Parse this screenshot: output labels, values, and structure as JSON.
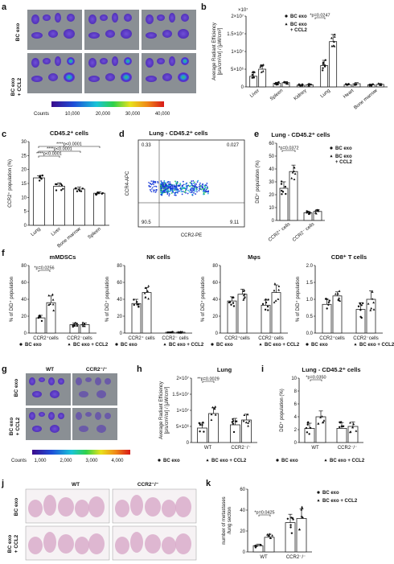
{
  "panel_labels": {
    "a": "a",
    "b": "b",
    "c": "c",
    "d": "d",
    "e": "e",
    "f": "f",
    "g": "g",
    "h": "h",
    "i": "i",
    "j": "j",
    "k": "k"
  },
  "panel_a": {
    "row_labels": [
      "BC exo",
      "BC exo\n+ CCL2"
    ],
    "colorbar_title": "Counts",
    "colorbar_ticks": [
      "10,000",
      "20,000",
      "30,000",
      "40,000"
    ]
  },
  "panel_d": {
    "title": "Lung - CD45.2⁺ cells",
    "ylabel": "CCR4-APC",
    "xlabel": "CCR2-PE",
    "quadrants": [
      "0.33",
      "0.027",
      "90.5",
      "9.11"
    ]
  },
  "panel_g": {
    "col_labels": [
      "WT",
      "CCR2⁻/⁻"
    ],
    "row_labels": [
      "BC exo",
      "BC exo\n+ CCL2"
    ],
    "colorbar_title": "Counts",
    "colorbar_ticks": [
      "1,000",
      "2,000",
      "3,000",
      "4,000"
    ]
  },
  "panel_j": {
    "col_labels": [
      "WT",
      "CCR2⁻/⁻"
    ],
    "row_labels": [
      "BC exo",
      "BC exo\n+ CCL2"
    ]
  },
  "legend": {
    "s1": "BC exo",
    "s2": "BC exo + CCL2",
    "s2_line1": "BC exo",
    "s2_line2": "+ CCL2"
  },
  "colors": {
    "bar_edge": "#222222",
    "point": "#111111",
    "he_stain": "#d8a8c8"
  },
  "chart_data": [
    {
      "id": "b",
      "type": "bar",
      "ylabel": "Average Radiant Efficiency [p/s/cm²/sr] / [μW/cm²]",
      "exponent": "×10⁷",
      "yticks": [
        "0",
        "5×10⁶",
        "1×10⁷",
        "1.5×10⁷",
        "2×10⁷"
      ],
      "ylim": [
        0,
        20000000
      ],
      "categories": [
        "Liver",
        "Spleen",
        "Kidney",
        "Lung",
        "Heart",
        "Bone marrow"
      ],
      "series": [
        {
          "name": "BC exo",
          "values": [
            3000000,
            1000000,
            500000,
            6000000,
            600000,
            600000
          ],
          "errors": [
            1000000,
            300000,
            200000,
            1500000,
            200000,
            200000
          ]
        },
        {
          "name": "BC exo + CCL2",
          "values": [
            5000000,
            1200000,
            600000,
            12800000,
            900000,
            700000
          ],
          "errors": [
            1200000,
            300000,
            200000,
            2000000,
            300000,
            200000
          ]
        }
      ],
      "annotations": [
        "*p=0.0247"
      ]
    },
    {
      "id": "c",
      "type": "bar",
      "title": "CD45.2⁺ cells",
      "ylabel": "CCR2⁺ population (%)",
      "yticks": [
        "0",
        "5",
        "10",
        "15",
        "20",
        "25",
        "30"
      ],
      "ylim": [
        0,
        30
      ],
      "categories": [
        "Lung",
        "Liver",
        "Bone marrow",
        "Spleen"
      ],
      "values": [
        17,
        14,
        13,
        11.5
      ],
      "errors": [
        0.8,
        1.2,
        0.7,
        0.5
      ],
      "annotations": [
        "****p<0.0001",
        "****p<0.0001",
        "****p<0.0001"
      ]
    },
    {
      "id": "e",
      "type": "bar",
      "title": "Lung - CD45.2⁺ cells",
      "ylabel": "DiD⁺ population (%)",
      "yticks": [
        "0",
        "10",
        "20",
        "30",
        "40",
        "50",
        "60"
      ],
      "ylim": [
        0,
        60
      ],
      "categories": [
        "CCR2⁺ cells",
        "CCR2⁻ cells"
      ],
      "series": [
        {
          "name": "BC exo",
          "values": [
            25,
            6
          ],
          "errors": [
            5,
            1
          ]
        },
        {
          "name": "BC exo + CCL2",
          "values": [
            38,
            7
          ],
          "errors": [
            5,
            1.5
          ]
        }
      ],
      "annotations": [
        "*p=0.0372"
      ]
    },
    {
      "id": "f1",
      "type": "bar",
      "title": "mMDSCs",
      "ylabel": "% of DiD⁺ population",
      "yticks": [
        "0",
        "20",
        "40",
        "60",
        "80"
      ],
      "ylim": [
        0,
        80
      ],
      "categories": [
        "CCR2⁺cells",
        "CCR2⁻cells"
      ],
      "series": [
        {
          "name": "BC exo",
          "values": [
            18,
            10
          ],
          "errors": [
            3,
            2
          ]
        },
        {
          "name": "BC exo + CCL2",
          "values": [
            36,
            10
          ],
          "errors": [
            8,
            2
          ]
        }
      ],
      "annotations": [
        "*p=0.0256"
      ]
    },
    {
      "id": "f2",
      "type": "bar",
      "title": "NK cells",
      "ylabel": "% of DiD⁺ population",
      "yticks": [
        "0",
        "20",
        "40",
        "60",
        "80"
      ],
      "ylim": [
        0,
        80
      ],
      "categories": [
        "CCR2⁺ cells",
        "CCR2⁻ cells"
      ],
      "series": [
        {
          "name": "BC exo",
          "values": [
            35,
            1
          ],
          "errors": [
            5,
            0.5
          ]
        },
        {
          "name": "BC exo + CCL2",
          "values": [
            48,
            1
          ],
          "errors": [
            6,
            0.5
          ]
        }
      ]
    },
    {
      "id": "f3",
      "type": "bar",
      "title": "Mφs",
      "ylabel": "% of DiD⁺ population",
      "yticks": [
        "0",
        "20",
        "40",
        "60",
        "80"
      ],
      "ylim": [
        0,
        80
      ],
      "categories": [
        "CCR2⁺cells",
        "CCR2⁻cells"
      ],
      "series": [
        {
          "name": "BC exo",
          "values": [
            38,
            33
          ],
          "errors": [
            5,
            6
          ]
        },
        {
          "name": "BC exo + CCL2",
          "values": [
            46,
            48
          ],
          "errors": [
            6,
            9
          ]
        }
      ]
    },
    {
      "id": "f4",
      "type": "bar",
      "title": "CD8⁺ T cells",
      "ylabel": "% of DiD⁺ population",
      "yticks": [
        "0.0",
        "0.5",
        "1.0",
        "1.5",
        "2.0"
      ],
      "ylim": [
        0,
        2
      ],
      "categories": [
        "CCR2⁺cells",
        "CCR2⁻cells"
      ],
      "series": [
        {
          "name": "BC exo",
          "values": [
            0.85,
            0.7
          ],
          "errors": [
            0.15,
            0.2
          ]
        },
        {
          "name": "BC exo + CCL2",
          "values": [
            1.1,
            1.0
          ],
          "errors": [
            0.12,
            0.25
          ]
        }
      ]
    },
    {
      "id": "h",
      "type": "bar",
      "title": "Lung",
      "ylabel": "Average Radiant Efficiency [p/s/cm²/sr] / [μW/cm²]",
      "yticks": [
        "0",
        "5×10⁶",
        "1×10⁷",
        "1.5×10⁷",
        "2×10⁷"
      ],
      "ylim": [
        0,
        20000000
      ],
      "categories": [
        "WT",
        "CCR2⁻/⁻"
      ],
      "series": [
        {
          "name": "BC exo",
          "values": [
            4500000,
            5500000
          ],
          "errors": [
            1500000,
            2000000
          ]
        },
        {
          "name": "BC exo + CCL2",
          "values": [
            9000000,
            7000000
          ],
          "errors": [
            1800000,
            1800000
          ]
        }
      ],
      "annotations": [
        "**p=0.0029"
      ]
    },
    {
      "id": "i",
      "type": "bar",
      "title": "Lung - CD45.2⁺ cells",
      "ylabel": "DiD⁺ population (%)",
      "yticks": [
        "0",
        "2",
        "4",
        "6",
        "8",
        "10"
      ],
      "ylim": [
        0,
        10
      ],
      "categories": [
        "WT",
        "CCR2⁻/⁻"
      ],
      "series": [
        {
          "name": "BC exo",
          "values": [
            2.2,
            2.2
          ],
          "errors": [
            0.8,
            0.9
          ]
        },
        {
          "name": "BC exo + CCL2",
          "values": [
            4.0,
            2.5
          ],
          "errors": [
            0.9,
            0.7
          ]
        }
      ],
      "annotations": [
        "*p=0.0350"
      ]
    },
    {
      "id": "k",
      "type": "bar",
      "ylabel": "number of metastases /lung section",
      "yticks": [
        "0",
        "20",
        "40",
        "60"
      ],
      "ylim": [
        0,
        60
      ],
      "categories": [
        "WT",
        "CCR2⁻/⁻"
      ],
      "series": [
        {
          "name": "BC exo",
          "values": [
            6,
            28
          ],
          "errors": [
            1.5,
            8
          ]
        },
        {
          "name": "BC exo + CCL2",
          "values": [
            14,
            32
          ],
          "errors": [
            3,
            9
          ]
        }
      ],
      "annotations": [
        "*p=0.0425"
      ]
    }
  ]
}
